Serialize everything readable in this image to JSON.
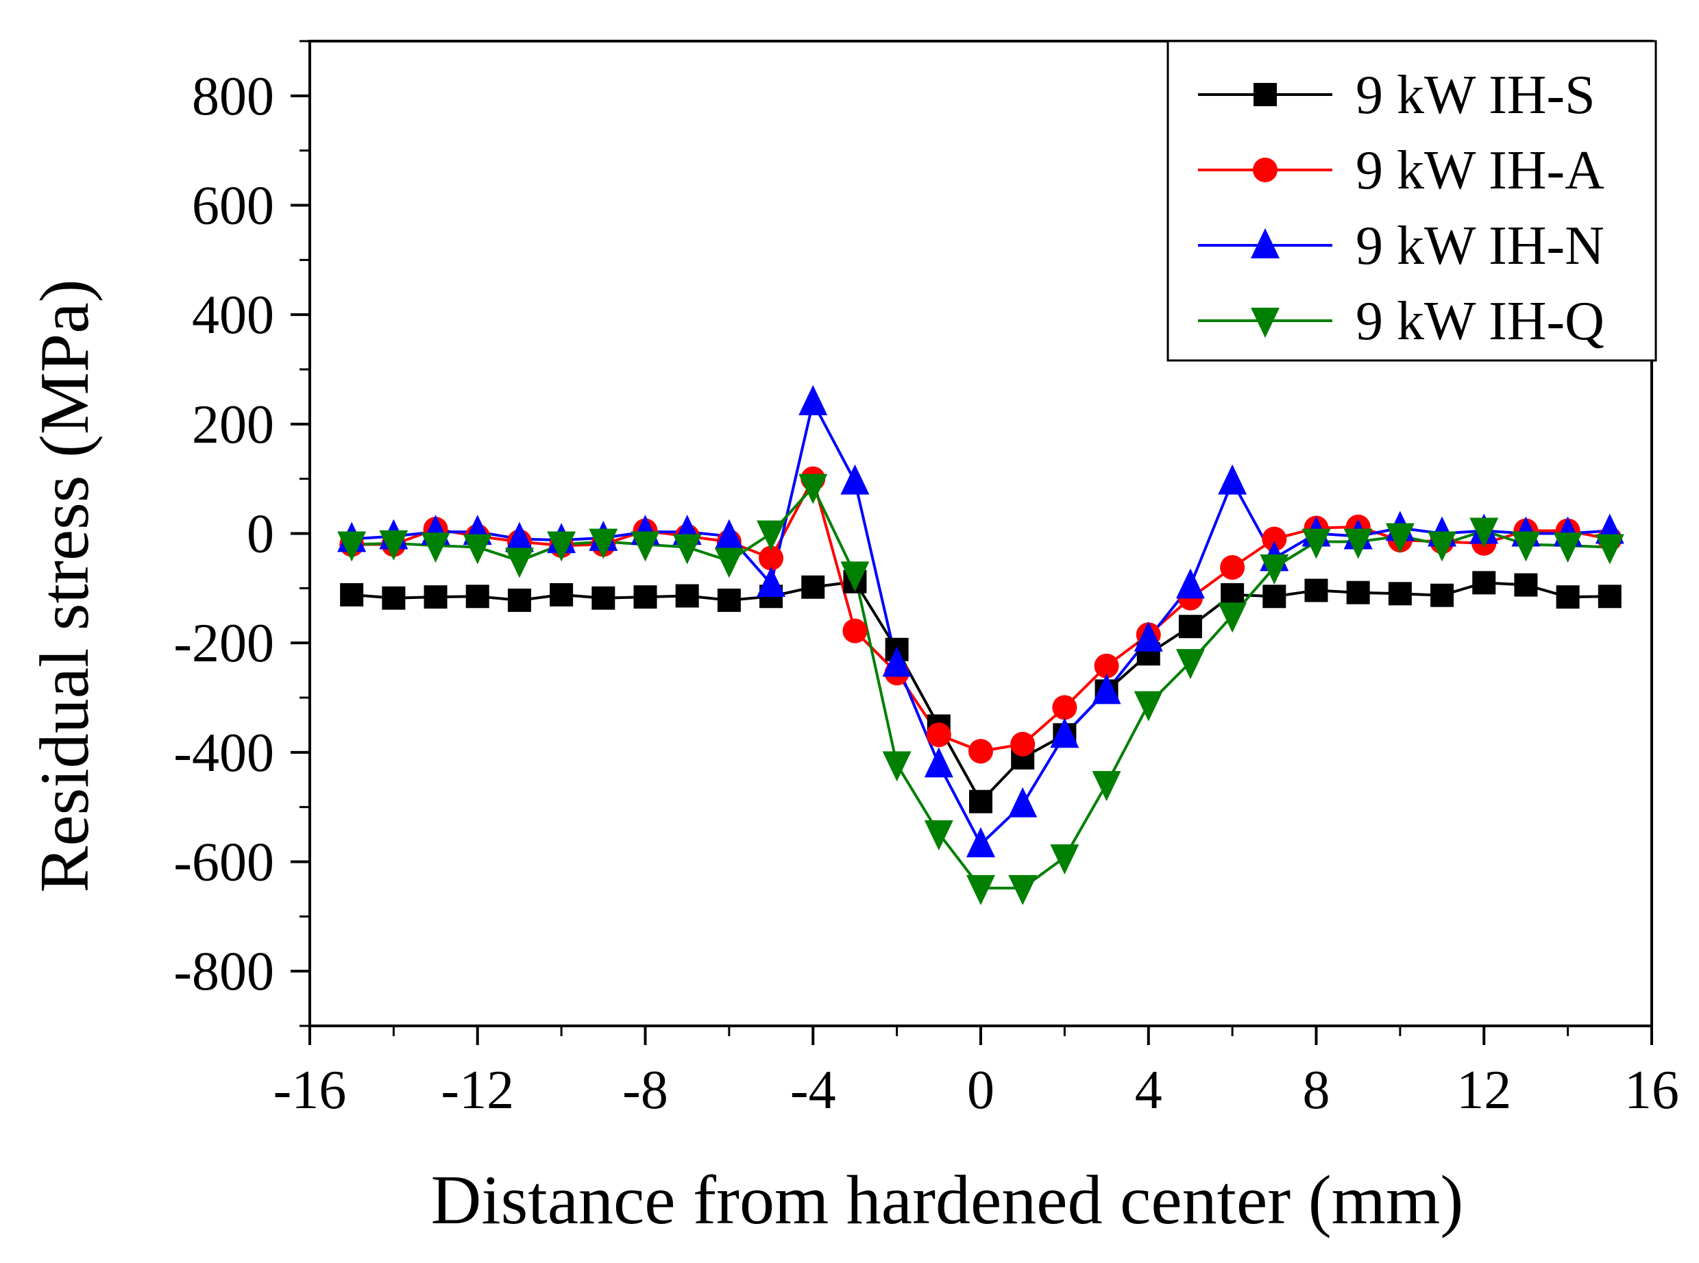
{
  "chart_data": {
    "type": "line",
    "xlabel": "Distance from hardened center (mm)",
    "ylabel": "Residual stress (MPa)",
    "xlim": [
      -16,
      16
    ],
    "ylim": [
      -900,
      900
    ],
    "xticks": [
      -16,
      -12,
      -8,
      -4,
      0,
      4,
      8,
      12,
      16
    ],
    "yticks": [
      800,
      600,
      400,
      200,
      0,
      -200,
      -400,
      -600,
      -800
    ],
    "xtick_labels": [
      "-16",
      "-12",
      "-8",
      "-4",
      "0",
      "4",
      "8",
      "12",
      "16"
    ],
    "ytick_labels": [
      "800",
      "600",
      "400",
      "200",
      "0",
      "-200",
      "-400",
      "-600",
      "-800"
    ],
    "legend_position": "top-right",
    "x": [
      -15,
      -14,
      -13,
      -12,
      -11,
      -10,
      -9,
      -8,
      -7,
      -6,
      -5,
      -4,
      -3,
      -2,
      -1,
      0,
      1,
      2,
      3,
      4,
      5,
      6,
      7,
      8,
      9,
      10,
      11,
      12,
      13,
      14,
      15
    ],
    "series": [
      {
        "name": "9 kW IH-S",
        "color": "#000000",
        "marker": "square",
        "values": [
          -112,
          -118,
          -116,
          -115,
          -122,
          -112,
          -118,
          -116,
          -114,
          -122,
          -115,
          -98,
          -88,
          -212,
          -352,
          -490,
          -410,
          -368,
          -288,
          -220,
          -170,
          -112,
          -115,
          -104,
          -108,
          -110,
          -113,
          -90,
          -94,
          -116,
          -115
        ]
      },
      {
        "name": "9 kW IH-A",
        "color": "#ff0000",
        "marker": "circle",
        "values": [
          -20,
          -20,
          8,
          -5,
          -15,
          -22,
          -20,
          5,
          -5,
          -15,
          -45,
          100,
          -178,
          -255,
          -368,
          -398,
          -385,
          -318,
          -242,
          -185,
          -118,
          -62,
          -10,
          10,
          12,
          -12,
          -15,
          -18,
          5,
          5,
          -10
        ]
      },
      {
        "name": "9 kW IH-N",
        "color": "#0000ff",
        "marker": "triangle-up",
        "values": [
          -10,
          -5,
          3,
          3,
          -10,
          -12,
          -8,
          3,
          3,
          -5,
          -92,
          240,
          95,
          -238,
          -422,
          -568,
          -495,
          -368,
          -288,
          -192,
          -95,
          95,
          -45,
          0,
          -5,
          10,
          0,
          5,
          0,
          0,
          5
        ]
      },
      {
        "name": "9 kW IH-Q",
        "color": "#008000",
        "marker": "triangle-down",
        "values": [
          -20,
          -18,
          -22,
          -25,
          -50,
          -20,
          -15,
          -20,
          -25,
          -50,
          0,
          85,
          -75,
          -422,
          -548,
          -648,
          -648,
          -592,
          -458,
          -312,
          -235,
          -150,
          -62,
          -15,
          -15,
          -5,
          -20,
          5,
          -20,
          -22,
          -25
        ]
      }
    ]
  }
}
